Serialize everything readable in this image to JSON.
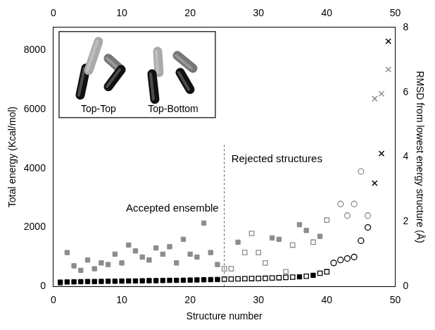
{
  "chart_data": {
    "type": "scatter",
    "x_label": "Structure number",
    "y_label": "Total energy (Kcal/mol)",
    "y2_label": "RMSD from lowest energy structure (Å)",
    "xlim": [
      0,
      50
    ],
    "xticks": [
      0,
      10,
      20,
      30,
      40,
      50
    ],
    "x2lim": [
      0,
      50
    ],
    "x2ticks": [
      0,
      10,
      20,
      30,
      40,
      50
    ],
    "ylim": [
      0,
      8770
    ],
    "yticks": [
      0,
      2000,
      4000,
      6000,
      8000
    ],
    "y2lim": [
      0,
      8
    ],
    "y2ticks": [
      0,
      2,
      4,
      6,
      8
    ],
    "grid": false,
    "annotations": [
      {
        "text": "Accepted ensemble"
      },
      {
        "text": "Rejected structures"
      }
    ],
    "reference_lines": [
      {
        "x": 25,
        "line_style": "dashed"
      }
    ],
    "inset": {
      "labels": [
        "Top-Top",
        "Top-Bottom"
      ]
    },
    "series": [
      {
        "color": "#000000",
        "marker": "square",
        "x": [
          1,
          2,
          3,
          4,
          5,
          6,
          7,
          8,
          9,
          10,
          11,
          12,
          13,
          14,
          15,
          16,
          17,
          18,
          19,
          20,
          21,
          22,
          23,
          24
        ],
        "values": [
          150,
          155,
          160,
          165,
          170,
          170,
          175,
          180,
          180,
          185,
          190,
          190,
          195,
          200,
          200,
          205,
          210,
          210,
          215,
          220,
          225,
          230,
          235,
          240
        ]
      },
      {
        "color": "#000000",
        "marker": "open_square",
        "x": [
          25,
          26,
          27,
          28,
          29,
          30,
          31,
          32,
          33,
          34,
          35,
          37,
          39,
          40
        ],
        "values": [
          250,
          255,
          260,
          265,
          270,
          275,
          280,
          290,
          300,
          310,
          320,
          350,
          450,
          500
        ]
      },
      {
        "color": "#000000",
        "marker": "square",
        "x": [
          36,
          38
        ],
        "values": [
          330,
          380
        ]
      },
      {
        "color": "#000000",
        "marker": "open_circle",
        "x": [
          41,
          42,
          43,
          44,
          45,
          46
        ],
        "values": [
          800,
          900,
          950,
          1000,
          1550,
          2000
        ]
      },
      {
        "color": "#000000",
        "marker": "cross",
        "x": [
          47,
          48,
          49
        ],
        "values": [
          3500,
          4500,
          8300
        ]
      },
      {
        "color": "#8c8c8c",
        "marker": "square",
        "axis": "y2",
        "x": [
          1,
          2,
          3,
          4,
          5,
          6,
          7,
          8,
          9,
          10,
          11,
          12,
          13,
          14,
          15,
          16,
          17,
          18,
          19,
          20,
          21,
          22,
          23,
          24
        ],
        "values": [
          0,
          1.05,
          0.64,
          0.5,
          0.82,
          0.55,
          0.73,
          0.68,
          1.0,
          0.73,
          1.28,
          1.1,
          0.91,
          0.82,
          1.19,
          1.0,
          1.23,
          0.73,
          1.46,
          1.0,
          0.91,
          1.96,
          1.05,
          0.68
        ]
      },
      {
        "color": "#8c8c8c",
        "marker": "square",
        "axis": "y2",
        "x": [
          27,
          32,
          33,
          36,
          37,
          39
        ],
        "values": [
          1.37,
          1.5,
          1.46,
          1.91,
          1.73,
          1.55
        ]
      },
      {
        "color": "#8c8c8c",
        "marker": "open_square",
        "axis": "y2",
        "x": [
          25,
          26,
          28,
          29,
          30,
          31,
          34,
          35,
          38,
          40
        ],
        "values": [
          0.55,
          0.55,
          1.05,
          1.64,
          1.05,
          0.73,
          0.46,
          1.28,
          1.37,
          2.05
        ]
      },
      {
        "color": "#8c8c8c",
        "marker": "open_circle",
        "axis": "y2",
        "x": [
          42,
          43,
          44,
          45,
          46
        ],
        "values": [
          2.55,
          2.19,
          2.55,
          3.55,
          2.19
        ]
      },
      {
        "color": "#8c8c8c",
        "marker": "cross",
        "axis": "y2",
        "x": [
          47,
          48,
          49
        ],
        "values": [
          5.8,
          5.95,
          6.7
        ]
      }
    ]
  }
}
